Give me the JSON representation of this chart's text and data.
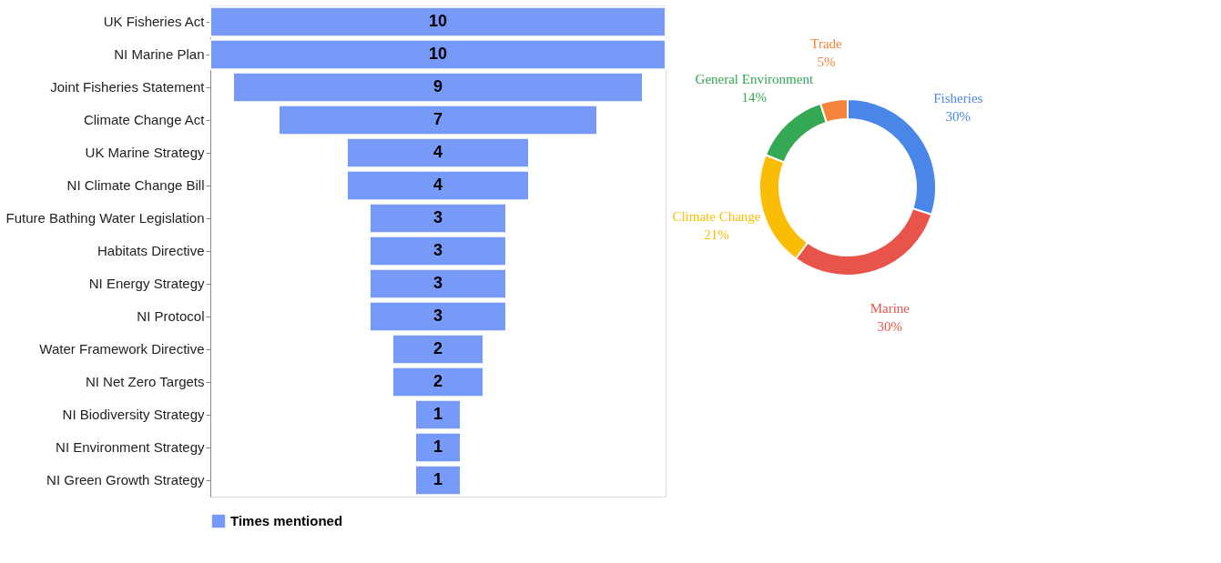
{
  "chart_data": [
    {
      "type": "other",
      "categories": [
        "UK Fisheries Act",
        "NI Marine Plan",
        "Joint Fisheries Statement",
        "Climate Change Act",
        "UK Marine Strategy",
        "NI Climate Change Bill",
        "Future Bathing Water Legislation",
        "Habitats Directive",
        "NI Energy Strategy",
        "NI Protocol",
        "Water Framework Directive",
        "NI Net Zero Targets",
        "NI Biodiversity Strategy",
        "NI Environment Strategy",
        "NI Green Growth Strategy"
      ],
      "series": [
        {
          "name": "Times mentioned",
          "color": "#779af9",
          "values": [
            10,
            10,
            9,
            7,
            4,
            4,
            3,
            3,
            3,
            3,
            2,
            2,
            1,
            1,
            1
          ]
        }
      ],
      "data_labels": true,
      "legend": "bottom"
    },
    {
      "type": "donut",
      "categories": [
        "Fisheries",
        "Marine",
        "Climate Change",
        "General Environment",
        "Trade"
      ],
      "values": [
        30,
        30,
        21,
        14,
        5
      ],
      "colors": [
        "#4a86e8",
        "#e8534a",
        "#fbbc04",
        "#34a853",
        "#f4843c"
      ],
      "value_labels": [
        "30%",
        "30%",
        "21%",
        "14%",
        "5%"
      ]
    }
  ]
}
